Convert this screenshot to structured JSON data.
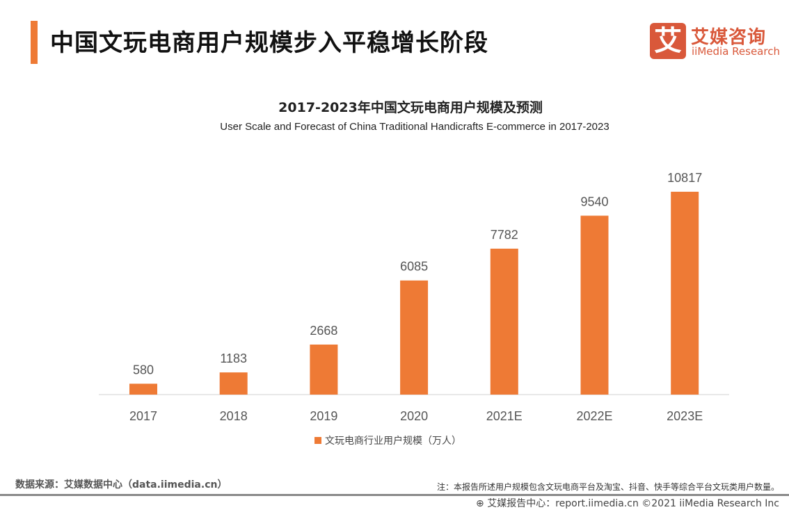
{
  "header": {
    "title": "中国文玩电商用户规模步入平稳增长阶段",
    "logo_mark": "艾",
    "logo_cn": "艾媒咨询",
    "logo_en": "iiMedia Research"
  },
  "chart_data": {
    "type": "bar",
    "title": "2017-2023年中国文玩电商用户规模及预测",
    "subtitle": "User Scale and Forecast of China Traditional Handicrafts E-commerce in 2017-2023",
    "categories": [
      "2017",
      "2018",
      "2019",
      "2020",
      "2021E",
      "2022E",
      "2023E"
    ],
    "series": [
      {
        "name": "文玩电商行业用户规模（万人）",
        "values": [
          580,
          1183,
          2668,
          6085,
          7782,
          9540,
          10817
        ],
        "color": "#ee7a35"
      }
    ],
    "ylim": [
      0,
      10817
    ],
    "grid": false,
    "legend": "bottom"
  },
  "footer": {
    "source": "数据来源：艾媒数据中心（data.iimedia.cn）",
    "note": "注：本报告所述用户规模包含文玩电商平台及淘宝、抖音、快手等综合平台文玩类用户数量。",
    "copyright": "艾媒报告中心：report.iimedia.cn   ©2021  iiMedia Research  Inc"
  }
}
